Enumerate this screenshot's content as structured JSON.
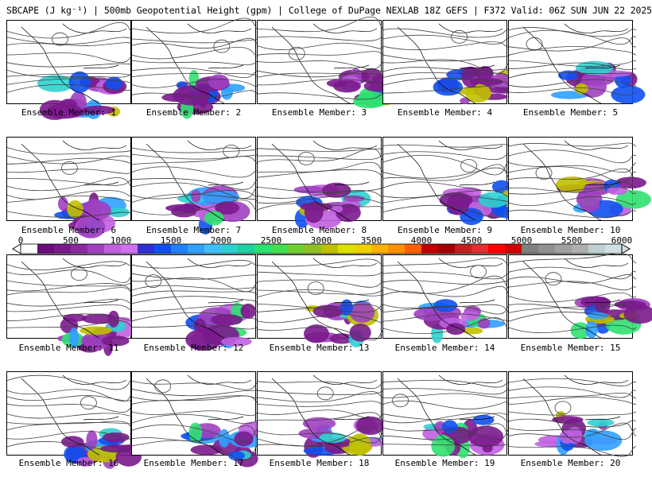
{
  "title": "SBCAPE (J kg⁻¹) | 500mb Geopotential Height (gpm) | College of DuPage NEXLAB 18Z GEFS | F372 Valid: 06Z SUN JUN 22 2025",
  "members": [
    "Ensemble Member: 1",
    "Ensemble Member: 2",
    "Ensemble Member: 3",
    "Ensemble Member: 4",
    "Ensemble Member: 5",
    "Ensemble Member: 6",
    "Ensemble Member: 7",
    "Ensemble Member: 8",
    "Ensemble Member: 9",
    "Ensemble Member: 10",
    "Ensemble Member: 11",
    "Ensemble Member: 12",
    "Ensemble Member: 13",
    "Ensemble Member: 14",
    "Ensemble Member: 15",
    "Ensemble Member: 16",
    "Ensemble Member: 17",
    "Ensemble Member: 18",
    "Ensemble Member: 19",
    "Ensemble Member: 20"
  ],
  "colorbar": {
    "ticks": [
      "0",
      "500",
      "1000",
      "1500",
      "2000",
      "2500",
      "3000",
      "3500",
      "4000",
      "4500",
      "5000",
      "5500",
      "6000"
    ],
    "colors": [
      "#ffffff",
      "#6a0d7a",
      "#7a1a8c",
      "#8a2a9e",
      "#a040c0",
      "#c060e0",
      "#d070f0",
      "#3030d0",
      "#1050f0",
      "#2080ff",
      "#30a0ff",
      "#40c0ff",
      "#30d0d0",
      "#20d0a0",
      "#30e070",
      "#40e050",
      "#70d030",
      "#90c020",
      "#c0c000",
      "#e0e000",
      "#f0d000",
      "#ffb000",
      "#ff9000",
      "#ff6000",
      "#c00000",
      "#a00000",
      "#c02020",
      "#e03030",
      "#ff0000",
      "#d00000",
      "#808080",
      "#909090",
      "#a0a0a0",
      "#b0b0b0",
      "#c0d0d0",
      "#d0e0e0"
    ]
  }
}
